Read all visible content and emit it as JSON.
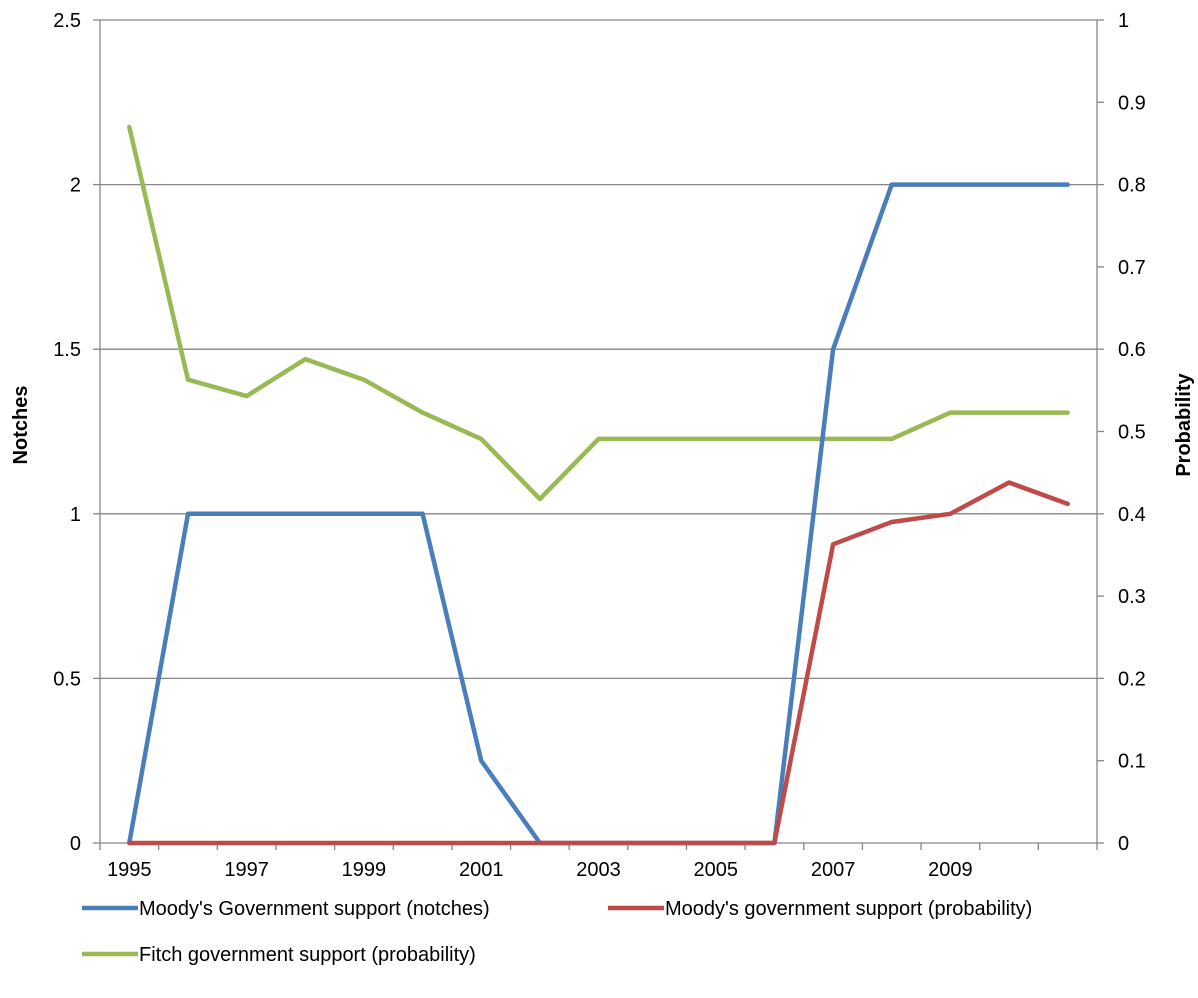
{
  "chart_data": {
    "type": "line",
    "x": [
      "1995",
      "1996",
      "1997",
      "1998",
      "1999",
      "2000",
      "2001",
      "2002",
      "2003",
      "2004",
      "2005",
      "2006",
      "2007",
      "2008",
      "2009",
      "2010",
      "2011"
    ],
    "x_tick_labels": [
      "1995",
      "1997",
      "1999",
      "2001",
      "2003",
      "2005",
      "2007",
      "2009"
    ],
    "ylabel_left": "Notches",
    "ylabel_right": "Probability",
    "ylim_left": [
      0,
      2.5
    ],
    "ylim_right": [
      0,
      1
    ],
    "y_ticks_left": [
      "0",
      "0.5",
      "1",
      "1.5",
      "2",
      "2.5"
    ],
    "y_ticks_right": [
      "0",
      "0.1",
      "0.2",
      "0.3",
      "0.4",
      "0.5",
      "0.6",
      "0.7",
      "0.8",
      "0.9",
      "1"
    ],
    "grid": true,
    "legend_position": "bottom",
    "series": [
      {
        "name": "Moody's Government support (notches)",
        "axis": "left",
        "color": "#4A7EBB",
        "values": [
          0,
          1,
          1,
          1,
          1,
          1,
          0.25,
          0,
          0,
          0,
          0,
          0,
          1.5,
          2,
          2,
          2,
          2
        ]
      },
      {
        "name": "Moody's government support (probability)",
        "axis": "right",
        "color": "#BE4B48",
        "values": [
          0,
          0,
          0,
          0,
          0,
          0,
          0,
          0,
          0,
          0,
          0,
          0,
          0.363,
          0.39,
          0.4,
          0.438,
          0.412
        ]
      },
      {
        "name": "Fitch government support (probability)",
        "axis": "right",
        "color": "#98B954",
        "values": [
          0.87,
          0.563,
          0.543,
          0.588,
          0.563,
          0.523,
          0.491,
          0.418,
          0.491,
          0.491,
          0.491,
          0.491,
          0.491,
          0.491,
          0.523,
          0.523,
          0.523
        ]
      }
    ]
  }
}
